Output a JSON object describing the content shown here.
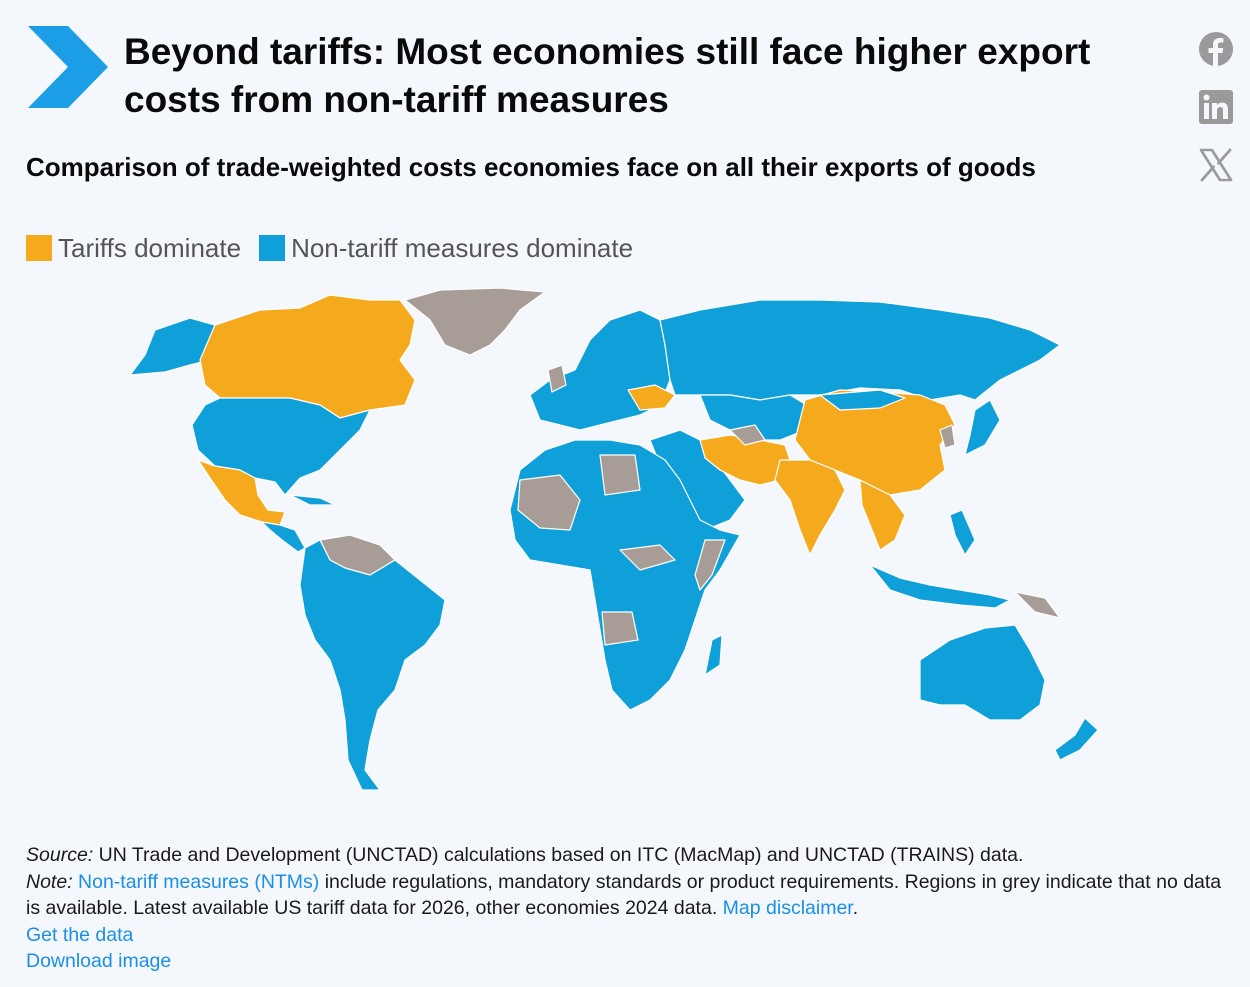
{
  "header": {
    "title": "Beyond tariffs: Most economies still face higher export costs from non-tariff measures",
    "subtitle": "Comparison of trade-weighted costs economies face on all their exports of goods"
  },
  "brand": {
    "logo_icon": "chevron-arrow-icon",
    "logo_color": "#1b9ee6"
  },
  "share": {
    "buttons": [
      {
        "icon": "facebook-icon"
      },
      {
        "icon": "linkedin-icon"
      },
      {
        "icon": "x-icon"
      }
    ],
    "icon_color": "#9a9a9a"
  },
  "legend": {
    "items": [
      {
        "label": "Tariffs dominate",
        "color": "#f5a91c"
      },
      {
        "label": "Non-tariff measures dominate",
        "color": "#0fa0da"
      }
    ],
    "no_data_color": "#a89d96"
  },
  "footer": {
    "source_label": "Source:",
    "source_text": " UN Trade and Development (UNCTAD) calculations based on ITC (MacMap) and UNCTAD (TRAINS) data.",
    "note_label": "Note:",
    "note_link": "Non-tariff measures (NTMs)",
    "note_text": " include regulations, mandatory standards or product requirements. Regions in grey indicate that no data is available. Latest available US tariff data for 2026, other economies 2024 data. ",
    "disclaimer_link": "Map disclaimer",
    "disclaimer_after": ".",
    "get_data": "Get the data",
    "download_image": "Download image"
  }
}
